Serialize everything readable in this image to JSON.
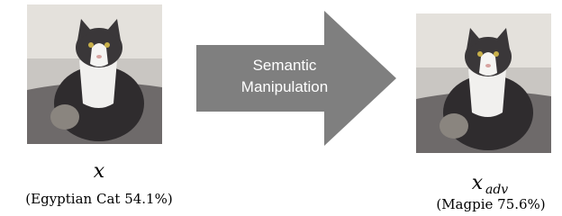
{
  "left": {
    "symbol": "x",
    "caption": "(Egyptian Cat 54.1%)"
  },
  "arrow": {
    "label_line1": "Semantic",
    "label_line2": "Manipulation"
  },
  "right": {
    "symbol": "x",
    "subscript": "adv",
    "caption": "(Magpie 75.6%)"
  }
}
